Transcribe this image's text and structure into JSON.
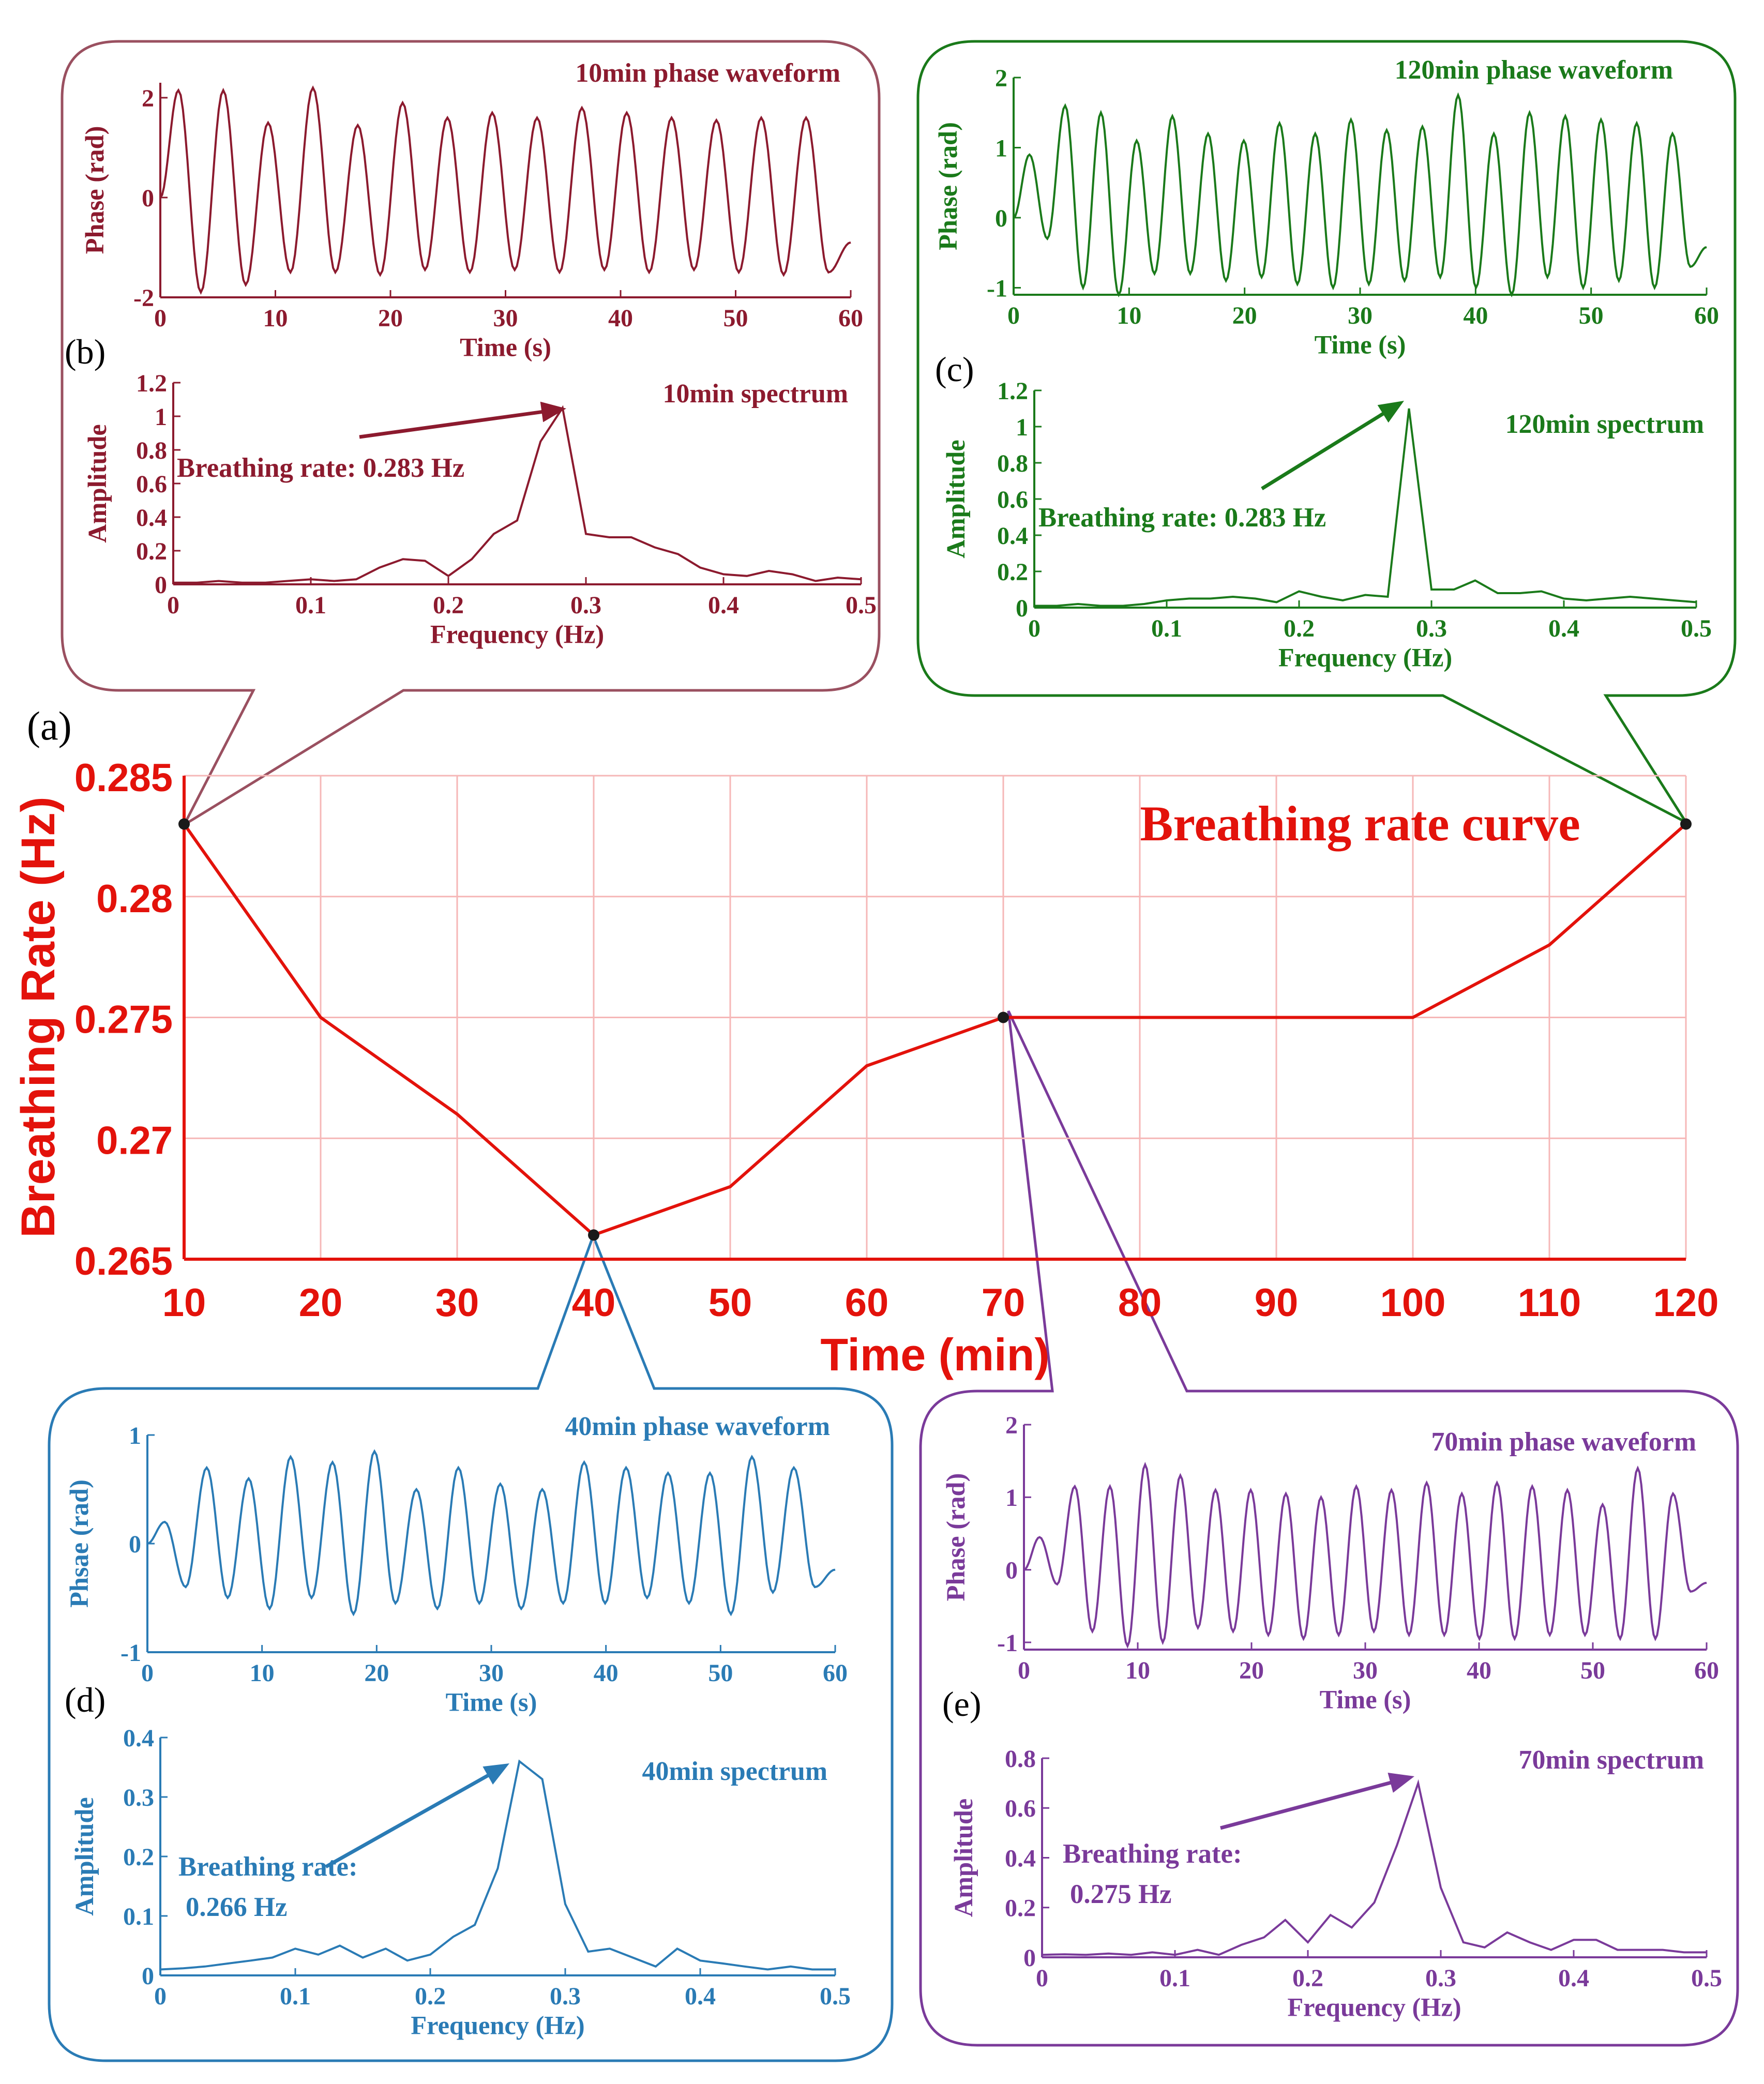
{
  "colors": {
    "main": "#e3120b",
    "grid": "#f6b7b7",
    "b": "#8c1a2e",
    "b_frame": "#9a5060",
    "c": "#1a7a1a",
    "d": "#2a7bb5",
    "e": "#7a3a9a",
    "marker": "#1a1a1a"
  },
  "chart_data": [
    {
      "id": "a",
      "type": "line",
      "panel_label": "(a)",
      "title": "Breathing rate curve",
      "xlabel": "Time (min)",
      "ylabel": "Breathing Rate (Hz)",
      "categories": [
        "10",
        "20",
        "30",
        "40",
        "50",
        "60",
        "70",
        "80",
        "90",
        "100",
        "110",
        "120"
      ],
      "values": [
        0.283,
        0.275,
        0.271,
        0.266,
        0.268,
        0.273,
        0.275,
        0.275,
        0.275,
        0.275,
        0.278,
        0.283
      ],
      "ylim": [
        0.265,
        0.285
      ],
      "yticks": [
        "0.265",
        "0.27",
        "0.275",
        "0.28",
        "0.285"
      ],
      "grid": true,
      "markers": [
        0,
        3,
        6,
        11
      ]
    },
    {
      "id": "b-wave",
      "type": "line",
      "title": "10min phase waveform",
      "xlabel": "Time (s)",
      "ylabel": "Phase (rad)",
      "xlim": [
        0,
        60
      ],
      "ylim": [
        -2,
        2.3
      ],
      "xticks": [
        "0",
        "10",
        "20",
        "30",
        "40",
        "50",
        "60"
      ],
      "yticks": [
        "-2",
        "0",
        "2"
      ],
      "peaks": [
        2.15,
        2.15,
        1.5,
        2.2,
        1.45,
        1.9,
        1.6,
        1.7,
        1.6,
        1.8,
        1.7,
        1.6,
        1.55,
        1.6,
        1.6
      ],
      "troughs": [
        -1.9,
        -1.75,
        -1.5,
        -1.5,
        -1.55,
        -1.45,
        -1.5,
        -1.45,
        -1.5,
        -1.45,
        -1.5,
        -1.45,
        -1.5,
        -1.55,
        -1.5
      ]
    },
    {
      "id": "b-spec",
      "type": "line",
      "panel_label": "(b)",
      "title": "10min spectrum",
      "xlabel": "Frequency (Hz)",
      "ylabel": "Amplitude",
      "annotation": "Breathing rate: 0.283 Hz",
      "xlim": [
        0,
        0.5
      ],
      "ylim": [
        0,
        1.2
      ],
      "xticks": [
        "0",
        "0.1",
        "0.2",
        "0.3",
        "0.4",
        "0.5"
      ],
      "yticks": [
        "0",
        "0.2",
        "0.4",
        "0.6",
        "0.8",
        "1",
        "1.2"
      ],
      "x": [
        0,
        0.017,
        0.033,
        0.05,
        0.067,
        0.083,
        0.1,
        0.117,
        0.133,
        0.15,
        0.167,
        0.183,
        0.2,
        0.217,
        0.233,
        0.25,
        0.267,
        0.283,
        0.3,
        0.317,
        0.333,
        0.35,
        0.367,
        0.383,
        0.4,
        0.417,
        0.433,
        0.45,
        0.467,
        0.483,
        0.5
      ],
      "y": [
        0.01,
        0.01,
        0.02,
        0.01,
        0.01,
        0.02,
        0.03,
        0.02,
        0.03,
        0.1,
        0.15,
        0.14,
        0.05,
        0.15,
        0.3,
        0.38,
        0.85,
        1.05,
        0.3,
        0.28,
        0.28,
        0.22,
        0.18,
        0.1,
        0.06,
        0.05,
        0.08,
        0.06,
        0.02,
        0.04,
        0.03
      ]
    },
    {
      "id": "c-wave",
      "type": "line",
      "title": "120min phase waveform",
      "xlabel": "Time (s)",
      "ylabel": "Phase (rad)",
      "xlim": [
        0,
        60
      ],
      "ylim": [
        -1.1,
        2
      ],
      "xticks": [
        "0",
        "10",
        "20",
        "30",
        "40",
        "50",
        "60"
      ],
      "yticks": [
        "-1",
        "0",
        "1",
        "2"
      ],
      "peaks": [
        0.9,
        1.6,
        1.5,
        1.1,
        1.45,
        1.2,
        1.1,
        1.35,
        1.2,
        1.4,
        1.25,
        1.3,
        1.75,
        1.2,
        1.5,
        1.45,
        1.4,
        1.35,
        1.2
      ],
      "troughs": [
        -0.3,
        -1.0,
        -1.1,
        -0.8,
        -0.8,
        -0.9,
        -0.85,
        -0.95,
        -1.0,
        -0.95,
        -0.9,
        -0.85,
        -1.0,
        -1.1,
        -0.85,
        -1.0,
        -0.9,
        -1.0,
        -0.7
      ]
    },
    {
      "id": "c-spec",
      "type": "line",
      "panel_label": "(c)",
      "title": "120min spectrum",
      "xlabel": "Frequency (Hz)",
      "ylabel": "Amplitude",
      "annotation": "Breathing rate: 0.283 Hz",
      "xlim": [
        0,
        0.5
      ],
      "ylim": [
        0,
        1.2
      ],
      "xticks": [
        "0",
        "0.1",
        "0.2",
        "0.3",
        "0.4",
        "0.5"
      ],
      "yticks": [
        "0",
        "0.2",
        "0.4",
        "0.6",
        "0.8",
        "1",
        "1.2"
      ],
      "x": [
        0,
        0.017,
        0.033,
        0.05,
        0.067,
        0.083,
        0.1,
        0.117,
        0.133,
        0.15,
        0.167,
        0.183,
        0.2,
        0.217,
        0.233,
        0.25,
        0.267,
        0.283,
        0.3,
        0.317,
        0.333,
        0.35,
        0.367,
        0.383,
        0.4,
        0.417,
        0.433,
        0.45,
        0.467,
        0.483,
        0.5
      ],
      "y": [
        0.01,
        0.01,
        0.02,
        0.01,
        0.01,
        0.02,
        0.04,
        0.05,
        0.05,
        0.06,
        0.05,
        0.03,
        0.09,
        0.06,
        0.04,
        0.07,
        0.06,
        1.1,
        0.1,
        0.1,
        0.15,
        0.08,
        0.08,
        0.09,
        0.05,
        0.04,
        0.05,
        0.06,
        0.05,
        0.04,
        0.03
      ]
    },
    {
      "id": "d-wave",
      "type": "line",
      "title": "40min phase waveform",
      "xlabel": "Time (s)",
      "ylabel": "Phsae (rad)",
      "xlim": [
        0,
        60
      ],
      "ylim": [
        -1,
        1
      ],
      "xticks": [
        "0",
        "10",
        "20",
        "30",
        "40",
        "50",
        "60"
      ],
      "yticks": [
        "-1",
        "0",
        "1"
      ],
      "peaks": [
        0.2,
        0.7,
        0.6,
        0.8,
        0.75,
        0.85,
        0.5,
        0.7,
        0.55,
        0.5,
        0.75,
        0.7,
        0.65,
        0.65,
        0.8,
        0.7
      ],
      "troughs": [
        -0.4,
        -0.5,
        -0.6,
        -0.5,
        -0.65,
        -0.55,
        -0.6,
        -0.55,
        -0.6,
        -0.55,
        -0.55,
        -0.5,
        -0.55,
        -0.65,
        -0.45,
        -0.4
      ]
    },
    {
      "id": "d-spec",
      "type": "line",
      "panel_label": "(d)",
      "title": "40min spectrum",
      "xlabel": "Frequency (Hz)",
      "ylabel": "Amplitude",
      "annotation_lines": [
        "Breathing rate:",
        "0.266 Hz"
      ],
      "xlim": [
        0,
        0.5
      ],
      "ylim": [
        0,
        0.4
      ],
      "xticks": [
        "0",
        "0.1",
        "0.2",
        "0.3",
        "0.4",
        "0.5"
      ],
      "yticks": [
        "0",
        "0.1",
        "0.2",
        "0.3",
        "0.4"
      ],
      "x": [
        0,
        0.017,
        0.033,
        0.05,
        0.067,
        0.083,
        0.1,
        0.117,
        0.133,
        0.15,
        0.167,
        0.183,
        0.2,
        0.217,
        0.233,
        0.25,
        0.266,
        0.283,
        0.3,
        0.317,
        0.333,
        0.35,
        0.367,
        0.383,
        0.4,
        0.417,
        0.433,
        0.45,
        0.467,
        0.483,
        0.5
      ],
      "y": [
        0.01,
        0.012,
        0.015,
        0.02,
        0.025,
        0.03,
        0.045,
        0.035,
        0.05,
        0.03,
        0.045,
        0.025,
        0.035,
        0.065,
        0.085,
        0.18,
        0.36,
        0.33,
        0.12,
        0.04,
        0.045,
        0.03,
        0.015,
        0.045,
        0.025,
        0.02,
        0.015,
        0.01,
        0.015,
        0.01,
        0.01
      ]
    },
    {
      "id": "e-wave",
      "type": "line",
      "title": "70min phase waveform",
      "xlabel": "Time (s)",
      "ylabel": "Phase (rad)",
      "xlim": [
        0,
        60
      ],
      "ylim": [
        -1.1,
        2
      ],
      "xticks": [
        "0",
        "10",
        "20",
        "30",
        "40",
        "50",
        "60"
      ],
      "yticks": [
        "-1",
        "0",
        "1",
        "2"
      ],
      "peaks": [
        0.45,
        1.15,
        1.15,
        1.45,
        1.3,
        1.1,
        1.1,
        1.05,
        1.0,
        1.15,
        1.1,
        1.2,
        1.05,
        1.2,
        1.15,
        1.1,
        0.9,
        1.4,
        1.05
      ],
      "troughs": [
        -0.2,
        -0.85,
        -1.05,
        -1.0,
        -0.8,
        -0.85,
        -0.9,
        -0.95,
        -0.9,
        -0.85,
        -0.9,
        -0.9,
        -0.95,
        -0.95,
        -0.9,
        -0.9,
        -0.95,
        -0.95,
        -0.3
      ]
    },
    {
      "id": "e-spec",
      "type": "line",
      "panel_label": "(e)",
      "title": "70min spectrum",
      "xlabel": "Frequency (Hz)",
      "ylabel": "Amplitude",
      "annotation_lines": [
        "Breathing rate:",
        "0.275 Hz"
      ],
      "xlim": [
        0,
        0.5
      ],
      "ylim": [
        0,
        0.8
      ],
      "xticks": [
        "0",
        "0.1",
        "0.2",
        "0.3",
        "0.4",
        "0.5"
      ],
      "yticks": [
        "0",
        "0.2",
        "0.4",
        "0.6",
        "0.8"
      ],
      "x": [
        0,
        0.017,
        0.033,
        0.05,
        0.067,
        0.083,
        0.1,
        0.117,
        0.133,
        0.15,
        0.167,
        0.183,
        0.2,
        0.217,
        0.233,
        0.25,
        0.267,
        0.283,
        0.3,
        0.317,
        0.333,
        0.35,
        0.367,
        0.383,
        0.4,
        0.417,
        0.433,
        0.45,
        0.467,
        0.483,
        0.5
      ],
      "y": [
        0.01,
        0.012,
        0.01,
        0.015,
        0.01,
        0.02,
        0.01,
        0.03,
        0.01,
        0.05,
        0.08,
        0.15,
        0.06,
        0.17,
        0.12,
        0.22,
        0.45,
        0.7,
        0.28,
        0.06,
        0.04,
        0.1,
        0.06,
        0.03,
        0.07,
        0.07,
        0.03,
        0.03,
        0.03,
        0.02,
        0.02
      ]
    }
  ]
}
